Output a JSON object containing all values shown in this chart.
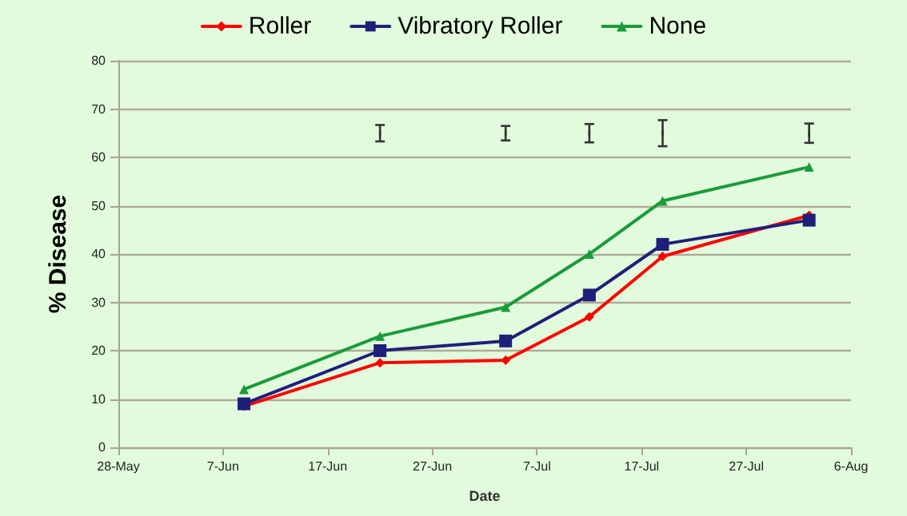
{
  "chart_data": {
    "type": "line",
    "xlabel": "Date",
    "ylabel": "% Disease",
    "x": [
      "--06-09",
      "--06-22",
      "--07-04",
      "--07-12",
      "--07-19",
      "--08-02"
    ],
    "series": [
      {
        "name": "Roller",
        "color": "#ff0000",
        "marker": "diamond",
        "values": [
          8.5,
          17.5,
          18,
          27,
          39.5,
          48
        ]
      },
      {
        "name": "Vibratory Roller",
        "color": "#1f1f7a",
        "marker": "square",
        "values": [
          9,
          20,
          22,
          31.5,
          42,
          47
        ]
      },
      {
        "name": "None",
        "color": "#1a9b3a",
        "marker": "triangle",
        "values": [
          12,
          23,
          29,
          40,
          51,
          58
        ]
      },
      {
        "type": "scatter",
        "color": "#333333",
        "x": [
          "--06-22",
          "--07-04",
          "--07-12",
          "--07-19",
          "--08-02"
        ],
        "values": [
          65,
          65,
          65,
          65,
          65
        ],
        "errors": [
          1.7,
          1.5,
          1.9,
          2.7,
          2.0
        ]
      }
    ],
    "xlim": [
      "--05-28",
      "--08-06"
    ],
    "xticks": [
      {
        "value": "--05-28",
        "label": "28-May"
      },
      {
        "value": "--06-07",
        "label": "7-Jun"
      },
      {
        "value": "--06-17",
        "label": "17-Jun"
      },
      {
        "value": "--06-27",
        "label": "27-Jun"
      },
      {
        "value": "--07-07",
        "label": "7-Jul"
      },
      {
        "value": "--07-17",
        "label": "17-Jul"
      },
      {
        "value": "--07-27",
        "label": "27-Jul"
      },
      {
        "value": "--08-06",
        "label": "6-Aug"
      }
    ],
    "ylim": [
      0,
      80
    ],
    "yticks": [
      0,
      10,
      20,
      30,
      40,
      50,
      60,
      70,
      80
    ],
    "grid": "y",
    "legend": "top",
    "line_style": "solid"
  }
}
